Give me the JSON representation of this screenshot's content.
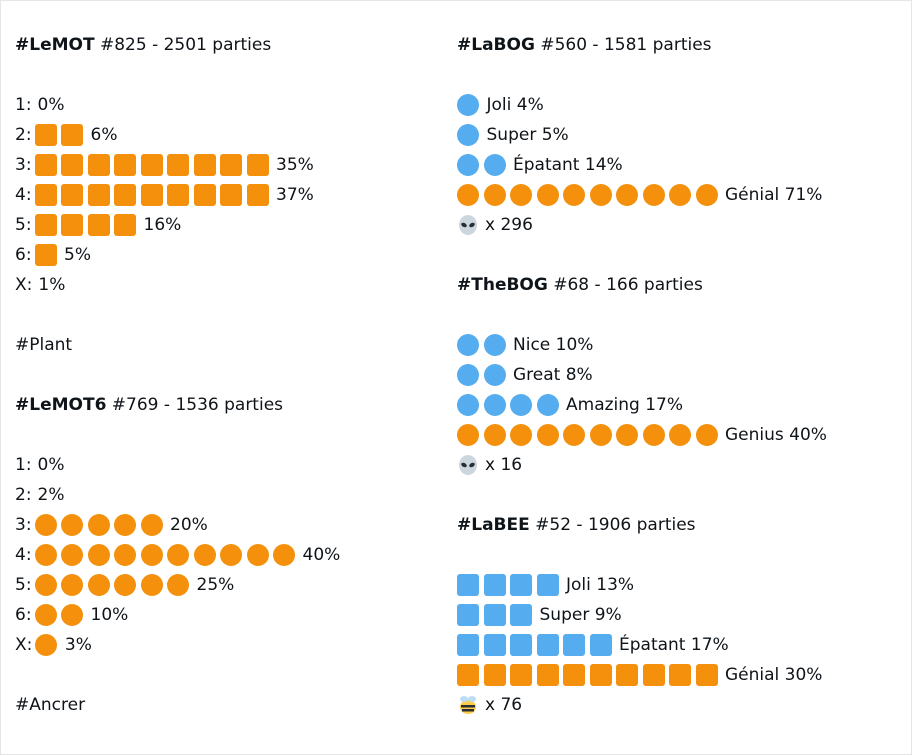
{
  "columns": [
    {
      "sections": [
        {
          "tag": "#LeMOT",
          "title": " #825 - 2501 parties",
          "shape": "square",
          "rows": [
            {
              "label": "1:",
              "blocks": 0,
              "color": "#f4900c",
              "text": "0%"
            },
            {
              "label": "2:",
              "blocks": 2,
              "color": "#f4900c",
              "text": "6%"
            },
            {
              "label": "3:",
              "blocks": 9,
              "color": "#f4900c",
              "text": "35%"
            },
            {
              "label": "4:",
              "blocks": 9,
              "color": "#f4900c",
              "text": "37%"
            },
            {
              "label": "5:",
              "blocks": 4,
              "color": "#f4900c",
              "text": "16%"
            },
            {
              "label": "6:",
              "blocks": 1,
              "color": "#f4900c",
              "text": "5%"
            },
            {
              "label": "X:",
              "blocks": 0,
              "color": "#f4900c",
              "text": "1%"
            }
          ],
          "footer": "#Plant"
        },
        {
          "tag": "#LeMOT6",
          "title": " #769 - 1536 parties",
          "shape": "circle",
          "rows": [
            {
              "label": "1:",
              "blocks": 0,
              "color": "#f4900c",
              "text": "0%"
            },
            {
              "label": "2:",
              "blocks": 0,
              "color": "#f4900c",
              "text": "2%"
            },
            {
              "label": "3:",
              "blocks": 5,
              "color": "#f4900c",
              "text": "20%"
            },
            {
              "label": "4:",
              "blocks": 10,
              "color": "#f4900c",
              "text": "40%"
            },
            {
              "label": "5:",
              "blocks": 6,
              "color": "#f4900c",
              "text": "25%"
            },
            {
              "label": "6:",
              "blocks": 2,
              "color": "#f4900c",
              "text": "10%"
            },
            {
              "label": "X:",
              "blocks": 1,
              "color": "#f4900c",
              "text": "3%"
            }
          ],
          "footer": "#Ancrer"
        }
      ]
    },
    {
      "sections": [
        {
          "tag": "#LaBOG",
          "title": " #560 - 1581 parties",
          "shape": "circle",
          "rows": [
            {
              "blocks": 1,
              "color": "#55acee",
              "text": "Joli 4%"
            },
            {
              "blocks": 1,
              "color": "#55acee",
              "text": "Super 5%"
            },
            {
              "blocks": 2,
              "color": "#55acee",
              "text": "Épatant 14%"
            },
            {
              "blocks": 10,
              "color": "#f4900c",
              "text": "Génial 71%"
            }
          ],
          "extra": {
            "icon": "alien",
            "text": "x 296"
          }
        },
        {
          "tag": "#TheBOG",
          "title": " #68 - 166 parties",
          "shape": "circle",
          "rows": [
            {
              "blocks": 2,
              "color": "#55acee",
              "text": "Nice 10%"
            },
            {
              "blocks": 2,
              "color": "#55acee",
              "text": "Great 8%"
            },
            {
              "blocks": 4,
              "color": "#55acee",
              "text": "Amazing 17%"
            },
            {
              "blocks": 10,
              "color": "#f4900c",
              "text": "Genius 40%"
            }
          ],
          "extra": {
            "icon": "alien",
            "text": "x 16"
          }
        },
        {
          "tag": "#LaBEE",
          "title": " #52 - 1906 parties",
          "shape": "square",
          "rows": [
            {
              "blocks": 4,
              "color": "#55acee",
              "text": "Joli 13%"
            },
            {
              "blocks": 3,
              "color": "#55acee",
              "text": "Super 9%"
            },
            {
              "blocks": 6,
              "color": "#55acee",
              "text": "Épatant 17%"
            },
            {
              "blocks": 10,
              "color": "#f4900c",
              "text": "Génial 30%"
            }
          ],
          "extra": {
            "icon": "bee",
            "text": "x 76"
          }
        }
      ]
    }
  ]
}
